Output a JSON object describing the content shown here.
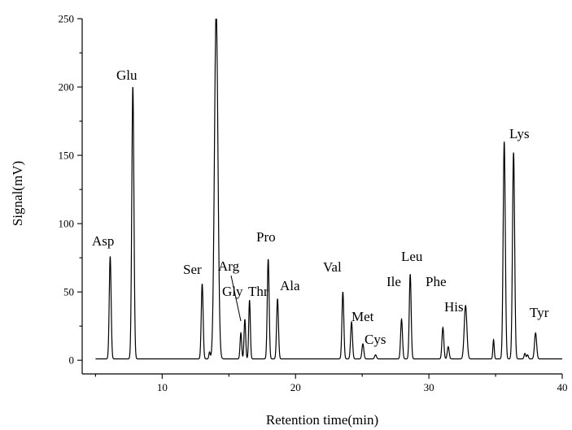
{
  "chart_data": {
    "type": "line",
    "title": "",
    "xlabel": "Retention time(min)",
    "ylabel": "Signal(mV)",
    "xlim": [
      4,
      40
    ],
    "ylim": [
      -10,
      250
    ],
    "grid": false,
    "x_ticks": [
      10,
      20,
      30,
      40
    ],
    "y_ticks": [
      0,
      50,
      100,
      150,
      200,
      250
    ],
    "baseline": 1,
    "peaks": [
      {
        "t": 6.1,
        "h": 75,
        "w": 0.07
      },
      {
        "t": 7.8,
        "h": 199,
        "w": 0.08
      },
      {
        "t": 13.0,
        "h": 55,
        "w": 0.07
      },
      {
        "t": 13.55,
        "h": 5,
        "w": 0.05
      },
      {
        "t": 14.05,
        "h": 255,
        "w": 0.13
      },
      {
        "t": 15.9,
        "h": 19,
        "w": 0.06
      },
      {
        "t": 16.2,
        "h": 29,
        "w": 0.06
      },
      {
        "t": 16.55,
        "h": 43,
        "w": 0.06
      },
      {
        "t": 17.95,
        "h": 73,
        "w": 0.07
      },
      {
        "t": 18.65,
        "h": 44,
        "w": 0.07
      },
      {
        "t": 23.55,
        "h": 49,
        "w": 0.07
      },
      {
        "t": 24.2,
        "h": 27,
        "w": 0.07
      },
      {
        "t": 25.05,
        "h": 11,
        "w": 0.07
      },
      {
        "t": 26.0,
        "h": 3,
        "w": 0.07
      },
      {
        "t": 27.95,
        "h": 29,
        "w": 0.07
      },
      {
        "t": 28.6,
        "h": 62,
        "w": 0.07
      },
      {
        "t": 31.05,
        "h": 23,
        "w": 0.07
      },
      {
        "t": 31.45,
        "h": 9,
        "w": 0.07
      },
      {
        "t": 32.75,
        "h": 39,
        "w": 0.1
      },
      {
        "t": 34.85,
        "h": 14,
        "w": 0.05
      },
      {
        "t": 35.65,
        "h": 159,
        "w": 0.08
      },
      {
        "t": 36.35,
        "h": 151,
        "w": 0.08
      },
      {
        "t": 37.2,
        "h": 4,
        "w": 0.06
      },
      {
        "t": 37.4,
        "h": 3,
        "w": 0.06
      },
      {
        "t": 38.0,
        "h": 19,
        "w": 0.08
      }
    ],
    "annotations": [
      {
        "text": "Asp",
        "x": 6.1
      },
      {
        "text": "Glu",
        "x": 7.8
      },
      {
        "text": "Ser",
        "x": 13.0
      },
      {
        "text": "Arg",
        "x": 16.2
      },
      {
        "text": "Gly",
        "x": 15.9
      },
      {
        "text": "Thr",
        "x": 16.55
      },
      {
        "text": "Pro",
        "x": 17.95
      },
      {
        "text": "Ala",
        "x": 18.65
      },
      {
        "text": "Val",
        "x": 23.55
      },
      {
        "text": "Met",
        "x": 24.2
      },
      {
        "text": "Cys",
        "x": 26.0
      },
      {
        "text": "Ile",
        "x": 27.95
      },
      {
        "text": "Leu",
        "x": 28.6
      },
      {
        "text": "Phe",
        "x": 31.05
      },
      {
        "text": "His",
        "x": 31.45
      },
      {
        "text": "Lys",
        "x": 36.35
      },
      {
        "text": "Tyr",
        "x": 38.0
      }
    ]
  }
}
